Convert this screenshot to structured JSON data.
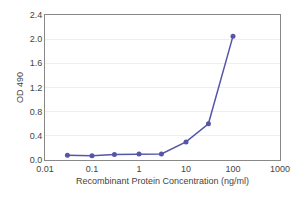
{
  "chart_data": {
    "type": "line",
    "x": [
      0.03,
      0.1,
      0.3,
      1,
      3,
      10,
      30,
      100
    ],
    "values": [
      0.08,
      0.07,
      0.09,
      0.1,
      0.1,
      0.3,
      0.6,
      2.05
    ],
    "xlabel": "Recombinant Protein Concentration (ng/ml)",
    "ylabel": "OD 490",
    "log": "x",
    "xlim": [
      0.01,
      1000
    ],
    "xticks": [
      0.01,
      0.1,
      1,
      10,
      100,
      1000
    ],
    "ylim": [
      0.0,
      2.4
    ],
    "yticks": [
      {
        "value": 0,
        "label": "0.0"
      },
      0.4,
      0.8,
      1.2,
      1.6,
      {
        "value": 2,
        "label": "2.0"
      },
      2.4
    ],
    "grid": "y",
    "color": "#5555aa",
    "marker": "circle"
  }
}
